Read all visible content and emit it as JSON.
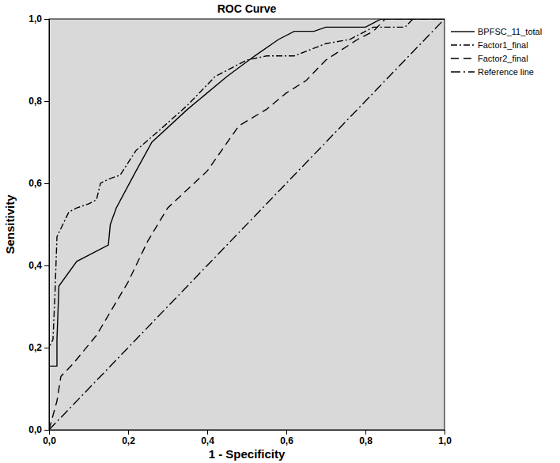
{
  "chart_data": {
    "type": "line",
    "title": "ROC Curve",
    "x_label": "1 - Specificity",
    "y_label": "Sensitivity",
    "xlim": [
      0,
      1
    ],
    "ylim": [
      0,
      1
    ],
    "xticks": [
      {
        "value": 0,
        "label": "0,0"
      },
      {
        "value": 0.2,
        "label": "0,2"
      },
      {
        "value": 0.4,
        "label": "0,4"
      },
      {
        "value": 0.6,
        "label": "0,6"
      },
      {
        "value": 0.8,
        "label": "0,8"
      },
      {
        "value": 1,
        "label": "1,0"
      }
    ],
    "yticks": [
      {
        "value": 0,
        "label": "0,0"
      },
      {
        "value": 0.2,
        "label": "0,2"
      },
      {
        "value": 0.4,
        "label": "0,4"
      },
      {
        "value": 0.6,
        "label": "0,6"
      },
      {
        "value": 0.8,
        "label": "0,8"
      },
      {
        "value": 1,
        "label": "1,0"
      }
    ],
    "grid": false,
    "legend": "right",
    "series": [
      {
        "name": "BPFSC_11_total",
        "color": "#000000",
        "line_style": "solid",
        "x": [
          0,
          0,
          0.02,
          0.02,
          0.025,
          0.07,
          0.15,
          0.155,
          0.17,
          0.22,
          0.26,
          0.35,
          0.45,
          0.52,
          0.58,
          0.62,
          0.67,
          0.7,
          0.8,
          0.82,
          0.84,
          1
        ],
        "values": [
          0,
          0.155,
          0.155,
          0.22,
          0.35,
          0.41,
          0.45,
          0.5,
          0.54,
          0.63,
          0.7,
          0.78,
          0.86,
          0.91,
          0.95,
          0.97,
          0.97,
          0.98,
          0.98,
          0.99,
          1,
          1
        ]
      },
      {
        "name": "Factor1_final",
        "color": "#000000",
        "line_style": "dashdot",
        "x": [
          0,
          0,
          0.01,
          0.015,
          0.02,
          0.05,
          0.07,
          0.1,
          0.12,
          0.13,
          0.15,
          0.18,
          0.22,
          0.28,
          0.35,
          0.42,
          0.5,
          0.55,
          0.62,
          0.7,
          0.76,
          0.8,
          0.82,
          0.9,
          0.92,
          1
        ],
        "values": [
          0,
          0.2,
          0.22,
          0.33,
          0.47,
          0.53,
          0.54,
          0.55,
          0.56,
          0.6,
          0.61,
          0.62,
          0.68,
          0.73,
          0.79,
          0.86,
          0.9,
          0.91,
          0.91,
          0.94,
          0.95,
          0.97,
          0.98,
          0.98,
          1,
          1
        ]
      },
      {
        "name": "Factor2_final",
        "color": "#000000",
        "line_style": "dashed",
        "x": [
          0,
          0.02,
          0.03,
          0.06,
          0.12,
          0.2,
          0.25,
          0.3,
          0.4,
          0.48,
          0.55,
          0.6,
          0.65,
          0.7,
          0.78,
          0.82,
          0.85,
          1
        ],
        "values": [
          0,
          0.07,
          0.13,
          0.16,
          0.23,
          0.36,
          0.46,
          0.54,
          0.63,
          0.74,
          0.78,
          0.82,
          0.85,
          0.9,
          0.95,
          0.97,
          1,
          1
        ]
      },
      {
        "name": "Reference line",
        "color": "#000000",
        "line_style": "longdashdot",
        "x": [
          0,
          1
        ],
        "values": [
          0,
          1
        ]
      }
    ]
  }
}
